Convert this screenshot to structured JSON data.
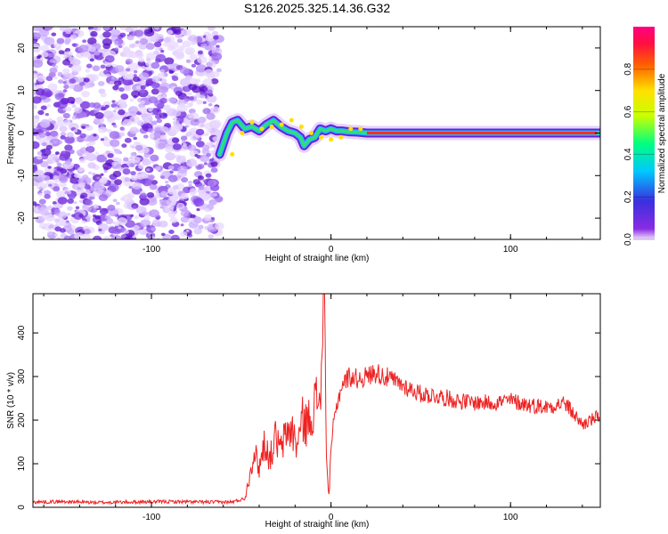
{
  "title": "S126.2025.325.14.36.G32",
  "chart_data": [
    {
      "type": "heatmap",
      "xlabel": "Height of straight line (km)",
      "ylabel": "Frequency (Hz)",
      "xlim": [
        -166,
        150
      ],
      "ylim": [
        -25,
        25
      ],
      "xticks": [
        -100,
        0,
        100
      ],
      "yticks": [
        -20,
        -10,
        0,
        10,
        20
      ],
      "colorbar": {
        "label": "Normalized spectral amplitude",
        "range": [
          0,
          1
        ],
        "ticks": [
          "0.0",
          "0.2",
          "0.4",
          "0.6",
          "0.8"
        ]
      },
      "noise_region_x": [
        -166,
        -62
      ],
      "trace": {
        "x": [
          -62,
          -58,
          -55,
          -52,
          -48,
          -44,
          -40,
          -36,
          -32,
          -28,
          -24,
          -20,
          -17,
          -15,
          -12,
          -9,
          -6,
          -3,
          0,
          3,
          6,
          10,
          15,
          20,
          150
        ],
        "y": [
          -5,
          0,
          2.5,
          3,
          1,
          1.5,
          0.5,
          2,
          3,
          1.5,
          0.5,
          0,
          -1,
          -3,
          -1.5,
          -1,
          1,
          0.5,
          1,
          0.5,
          0.5,
          0.3,
          0.2,
          0,
          0
        ]
      }
    },
    {
      "type": "line",
      "xlabel": "Height of straight line (km)",
      "ylabel": "SNR (10 * v/v)",
      "xlim": [
        -166,
        150
      ],
      "ylim": [
        0,
        490
      ],
      "xticks": [
        -100,
        0,
        100
      ],
      "yticks": [
        0,
        100,
        200,
        300,
        400
      ],
      "color": "#ee2222",
      "x": [
        -166,
        -150,
        -130,
        -110,
        -90,
        -70,
        -55,
        -48,
        -45,
        -43,
        -40,
        -37,
        -34,
        -31,
        -28,
        -25,
        -22,
        -19,
        -16,
        -13,
        -10,
        -7,
        -5,
        -4,
        -3,
        -2,
        -1,
        0,
        1,
        3,
        6,
        10,
        15,
        20,
        25,
        30,
        35,
        40,
        50,
        60,
        70,
        80,
        90,
        100,
        110,
        120,
        130,
        140,
        145,
        150
      ],
      "y": [
        12,
        13,
        11,
        12,
        13,
        12,
        12,
        20,
        80,
        130,
        90,
        150,
        110,
        160,
        130,
        170,
        180,
        140,
        200,
        190,
        230,
        250,
        300,
        490,
        240,
        60,
        30,
        120,
        180,
        230,
        280,
        300,
        295,
        300,
        310,
        300,
        290,
        280,
        260,
        255,
        245,
        240,
        240,
        245,
        235,
        230,
        240,
        190,
        200,
        210
      ]
    }
  ]
}
